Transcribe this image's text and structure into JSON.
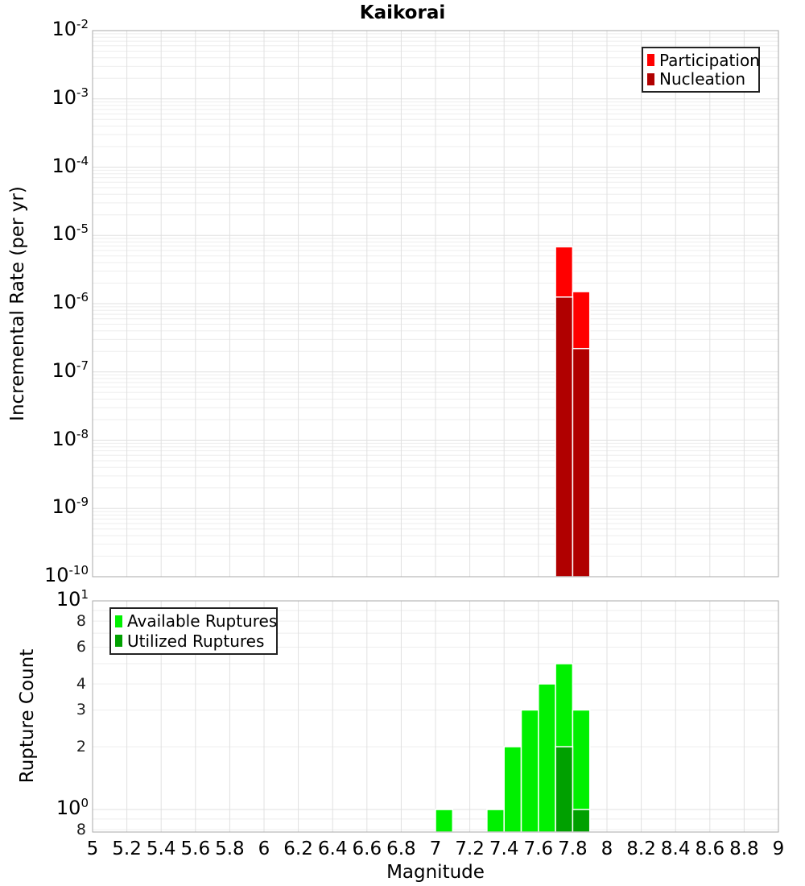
{
  "title": "Kaikorai",
  "x_axis": {
    "label": "Magnitude",
    "min": 5,
    "max": 9,
    "ticks": [
      5,
      5.2,
      5.4,
      5.6,
      5.8,
      6,
      6.2,
      6.4,
      6.6,
      6.8,
      7,
      7.2,
      7.4,
      7.6,
      7.8,
      8,
      8.2,
      8.4,
      8.6,
      8.8,
      9
    ],
    "tick_labels": [
      "5",
      "5.2",
      "5.4",
      "5.6",
      "5.8",
      "6",
      "6.2",
      "6.4",
      "6.6",
      "6.8",
      "7",
      "7.2",
      "7.4",
      "7.6",
      "7.8",
      "8",
      "8.2",
      "8.4",
      "8.6",
      "8.8",
      "9"
    ]
  },
  "top_chart": {
    "ylabel": "Incremental Rate (per yr)",
    "yscale": "log",
    "y_tick_exponents": [
      -2,
      -3,
      -4,
      -5,
      -6,
      -7,
      -8,
      -9,
      -10
    ],
    "legend": [
      {
        "label": "Participation",
        "color": "#ff0000"
      },
      {
        "label": "Nucleation",
        "color": "#b00000"
      }
    ]
  },
  "bottom_chart": {
    "ylabel": "Rupture Count",
    "yscale": "log",
    "y_major_tick_exponents": [
      1,
      0
    ],
    "y_minor_ticks": [
      {
        "value": 8,
        "label": "8"
      },
      {
        "value": 6,
        "label": "6"
      },
      {
        "value": 4,
        "label": "4"
      },
      {
        "value": 3,
        "label": "3"
      },
      {
        "value": 2,
        "label": "2"
      },
      {
        "value": 0.8,
        "label": "8"
      }
    ],
    "legend": [
      {
        "label": "Available Ruptures",
        "color": "#00f000"
      },
      {
        "label": "Utilized Ruptures",
        "color": "#00a000"
      }
    ]
  },
  "colors": {
    "grid_major": "#e0e0e0",
    "grid_minor": "#eeeeee",
    "axis_border": "#aaaaaa",
    "bar_edge": "#ffffff"
  },
  "chart_data": [
    {
      "panel": "top",
      "type": "bar",
      "title": "Kaikorai",
      "xlabel": "Magnitude",
      "ylabel": "Incremental Rate (per yr)",
      "yscale": "log",
      "ylim": [
        1e-10,
        0.01
      ],
      "xlim": [
        5,
        9
      ],
      "bin_width": 0.1,
      "grid": true,
      "legend_position": "top-right",
      "series": [
        {
          "name": "Participation",
          "color": "#ff0000",
          "bins": [
            {
              "mag": 7.7,
              "value": 6.8e-06
            },
            {
              "mag": 7.8,
              "value": 1.5e-06
            }
          ]
        },
        {
          "name": "Nucleation",
          "color": "#b00000",
          "bins": [
            {
              "mag": 7.7,
              "value": 1.25e-06
            },
            {
              "mag": 7.8,
              "value": 2.2e-07
            }
          ]
        }
      ]
    },
    {
      "panel": "bottom",
      "type": "bar",
      "xlabel": "Magnitude",
      "ylabel": "Rupture Count",
      "yscale": "log",
      "ylim": [
        0.78,
        10
      ],
      "xlim": [
        5,
        9
      ],
      "bin_width": 0.1,
      "grid": true,
      "legend_position": "top-left",
      "series": [
        {
          "name": "Available Ruptures",
          "color": "#00f000",
          "bins": [
            {
              "mag": 7.0,
              "value": 1
            },
            {
              "mag": 7.3,
              "value": 1
            },
            {
              "mag": 7.4,
              "value": 2
            },
            {
              "mag": 7.5,
              "value": 3
            },
            {
              "mag": 7.6,
              "value": 4
            },
            {
              "mag": 7.7,
              "value": 5
            },
            {
              "mag": 7.8,
              "value": 3
            }
          ]
        },
        {
          "name": "Utilized Ruptures",
          "color": "#00a000",
          "bins": [
            {
              "mag": 7.7,
              "value": 2
            },
            {
              "mag": 7.8,
              "value": 1
            }
          ]
        }
      ]
    }
  ]
}
